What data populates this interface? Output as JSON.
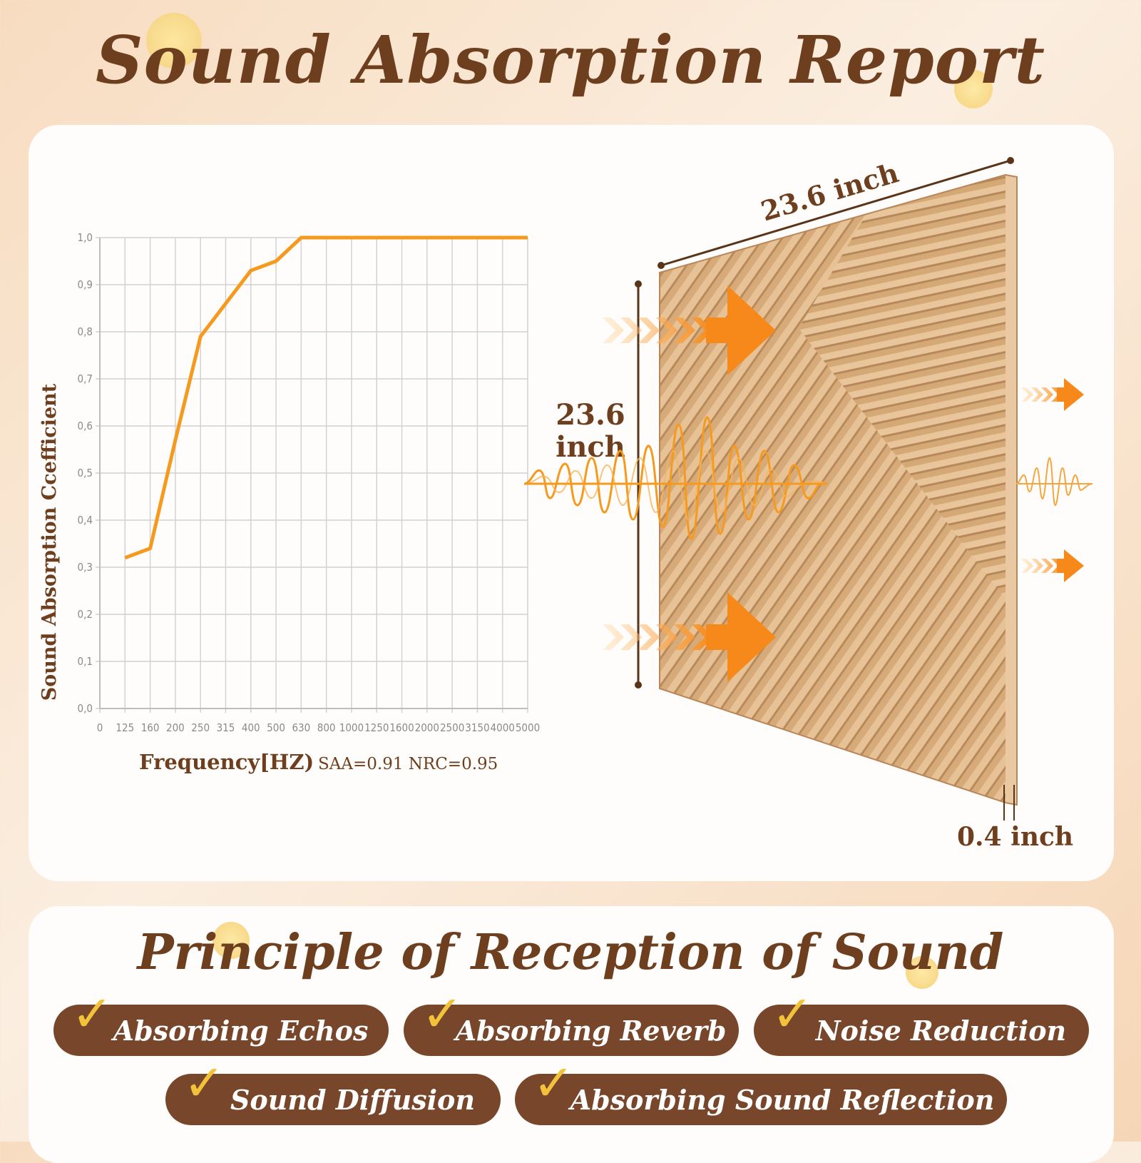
{
  "header": {
    "title": "Sound Absorption Report"
  },
  "chart_data": {
    "type": "line",
    "x": [
      "0",
      "125",
      "160",
      "200",
      "250",
      "315",
      "400",
      "500",
      "630",
      "800",
      "1000",
      "1250",
      "1600",
      "2000",
      "2500",
      "3150",
      "4000",
      "5000"
    ],
    "series": [
      {
        "values": [
          null,
          0.32,
          0.34,
          0.57,
          0.79,
          0.86,
          0.93,
          0.95,
          1.0,
          1.0,
          1.0,
          1.0,
          1.0,
          1.0,
          1.0,
          1.0,
          1.0,
          1.0
        ]
      }
    ],
    "yticks": [
      "0,0",
      "0,1",
      "0,2",
      "0,3",
      "0,4",
      "0,5",
      "0,6",
      "0,7",
      "0,8",
      "0,9",
      "1,0"
    ],
    "ylim": [
      0,
      1.0
    ],
    "xlabel": "Frequency[HZ)",
    "ylabel": "Sound Absorption Ccefficient",
    "annotation": "SAA=0.91 NRC=0.95",
    "grid": true,
    "line_color": "#f59a1e"
  },
  "product": {
    "width_label": "23.6 inch",
    "height_label_line1": "23.6",
    "height_label_line2": "inch",
    "thickness_label": "0.4 inch"
  },
  "principle": {
    "title": "Principle of Reception of Sound",
    "features": [
      "Absorbing Echos",
      "Absorbing Reverb",
      "Noise Reduction",
      "Sound Diffusion",
      "Absorbing Sound Reflection"
    ],
    "check_icon": "✓"
  },
  "colors": {
    "brown": "#6e3f1e",
    "pill": "#78462a",
    "check": "#f2c23a",
    "orange": "#f59a1e"
  }
}
